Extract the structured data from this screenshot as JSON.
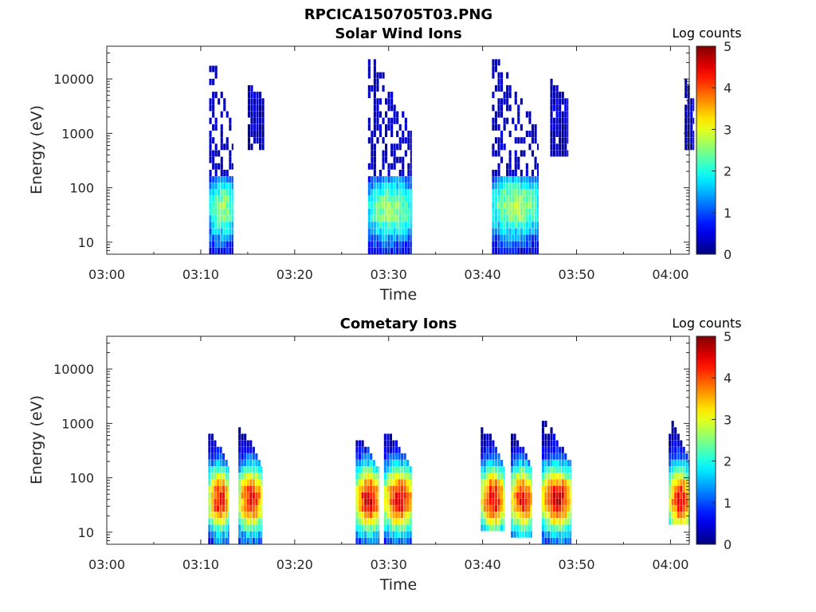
{
  "figure_title": "RPCICA150705T03.PNG",
  "chart_data": [
    {
      "type": "heatmap",
      "title": "Solar Wind Ions",
      "xlabel": "Time",
      "ylabel": "Energy (eV)",
      "x_ticks": [
        "03:00",
        "03:10",
        "03:20",
        "03:30",
        "03:40",
        "03:50",
        "04:00"
      ],
      "y_ticks": [
        "10",
        "100",
        "1000",
        "10000"
      ],
      "y_scale": "log",
      "ylim": [
        6,
        40000
      ],
      "colorbar": {
        "label": "Log counts",
        "ticks": [
          "0",
          "1",
          "2",
          "3",
          "4",
          "5"
        ],
        "range": [
          0,
          5
        ],
        "colormap": "jet"
      },
      "bursts": [
        {
          "t_start": 10.9,
          "t_end": 13.5,
          "e_min": 6,
          "e_max": 22000,
          "peak": 2.3,
          "peak_energy": 40,
          "sparse_high_energy": true
        },
        {
          "t_start": 15.0,
          "t_end": 16.8,
          "e_min": 500,
          "e_max": 7000,
          "peak": 0.3,
          "peak_energy": 3000,
          "sparse_high_energy": true
        },
        {
          "t_start": 27.8,
          "t_end": 32.5,
          "e_min": 6,
          "e_max": 26000,
          "peak": 2.3,
          "peak_energy": 40,
          "sparse_high_energy": true
        },
        {
          "t_start": 41.0,
          "t_end": 46.0,
          "e_min": 6,
          "e_max": 24000,
          "peak": 2.4,
          "peak_energy": 45,
          "sparse_high_energy": true
        },
        {
          "t_start": 47.2,
          "t_end": 49.0,
          "e_min": 400,
          "e_max": 9000,
          "peak": 0.3,
          "peak_energy": 2000,
          "sparse_high_energy": true
        },
        {
          "t_start": 61.5,
          "t_end": 62.5,
          "e_min": 500,
          "e_max": 10000,
          "peak": 0.3,
          "peak_energy": 2000,
          "sparse_high_energy": true
        }
      ]
    },
    {
      "type": "heatmap",
      "title": "Cometary Ions",
      "xlabel": "Time",
      "ylabel": "Energy (eV)",
      "x_ticks": [
        "03:00",
        "03:10",
        "03:20",
        "03:30",
        "03:40",
        "03:50",
        "04:00"
      ],
      "y_ticks": [
        "10",
        "100",
        "1000",
        "10000"
      ],
      "y_scale": "log",
      "ylim": [
        6,
        40000
      ],
      "colorbar": {
        "label": "Log counts",
        "ticks": [
          "0",
          "1",
          "2",
          "3",
          "4",
          "5"
        ],
        "range": [
          0,
          5
        ],
        "colormap": "jet"
      },
      "bursts": [
        {
          "t_start": 10.8,
          "t_end": 13.0,
          "e_min": 6,
          "e_max": 650,
          "peak": 3.8,
          "peak_energy": 40
        },
        {
          "t_start": 14.0,
          "t_end": 16.5,
          "e_min": 6,
          "e_max": 800,
          "peak": 3.8,
          "peak_energy": 40
        },
        {
          "t_start": 26.5,
          "t_end": 29.0,
          "e_min": 6,
          "e_max": 550,
          "peak": 4.0,
          "peak_energy": 40
        },
        {
          "t_start": 29.5,
          "t_end": 32.5,
          "e_min": 6,
          "e_max": 650,
          "peak": 3.9,
          "peak_energy": 40
        },
        {
          "t_start": 39.8,
          "t_end": 42.2,
          "e_min": 10,
          "e_max": 900,
          "peak": 3.9,
          "peak_energy": 40
        },
        {
          "t_start": 43.0,
          "t_end": 45.3,
          "e_min": 8,
          "e_max": 600,
          "peak": 3.8,
          "peak_energy": 40
        },
        {
          "t_start": 46.3,
          "t_end": 49.3,
          "e_min": 6,
          "e_max": 1000,
          "peak": 4.0,
          "peak_energy": 40
        },
        {
          "t_start": 59.8,
          "t_end": 62.0,
          "e_min": 15,
          "e_max": 1100,
          "peak": 3.8,
          "peak_energy": 40
        }
      ]
    }
  ]
}
